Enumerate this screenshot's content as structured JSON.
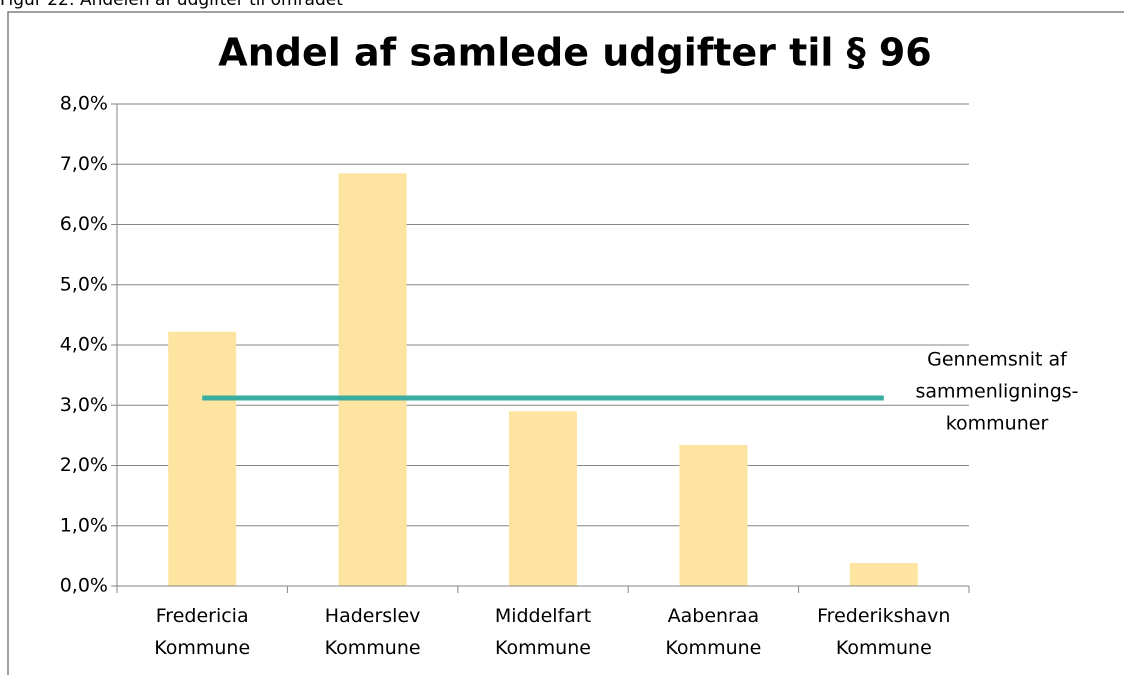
{
  "caption": "Figur 22: Andelen af udgifter til området",
  "chart_data": {
    "type": "bar",
    "title": "Andel af samlede udgifter til § 96",
    "categories": [
      "Fredericia Kommune",
      "Haderslev Kommune",
      "Middelfart Kommune",
      "Aabenraa Kommune",
      "Frederikshavn Kommune"
    ],
    "series": [
      {
        "type": "bar",
        "color": "#fee4a1",
        "values": [
          4.22,
          6.85,
          2.9,
          2.34,
          0.38
        ]
      },
      {
        "type": "line",
        "color": "#3aada0",
        "values": [
          3.12,
          3.12,
          3.12,
          3.12,
          3.12
        ]
      }
    ],
    "annotation": [
      "Gennemsnit af",
      "sammenlignings-",
      "kommuner"
    ],
    "ylim": [
      0,
      8
    ],
    "yticks": [
      {
        "value": 0,
        "label": "0,0%"
      },
      {
        "value": 1,
        "label": "1,0%"
      },
      {
        "value": 2,
        "label": "2,0%"
      },
      {
        "value": 3,
        "label": "3,0%"
      },
      {
        "value": 4,
        "label": "4,0%"
      },
      {
        "value": 5,
        "label": "5,0%"
      },
      {
        "value": 6,
        "label": "6,0%"
      },
      {
        "value": 7,
        "label": "7,0%"
      },
      {
        "value": 8,
        "label": "8,0%"
      }
    ],
    "grid": true
  }
}
